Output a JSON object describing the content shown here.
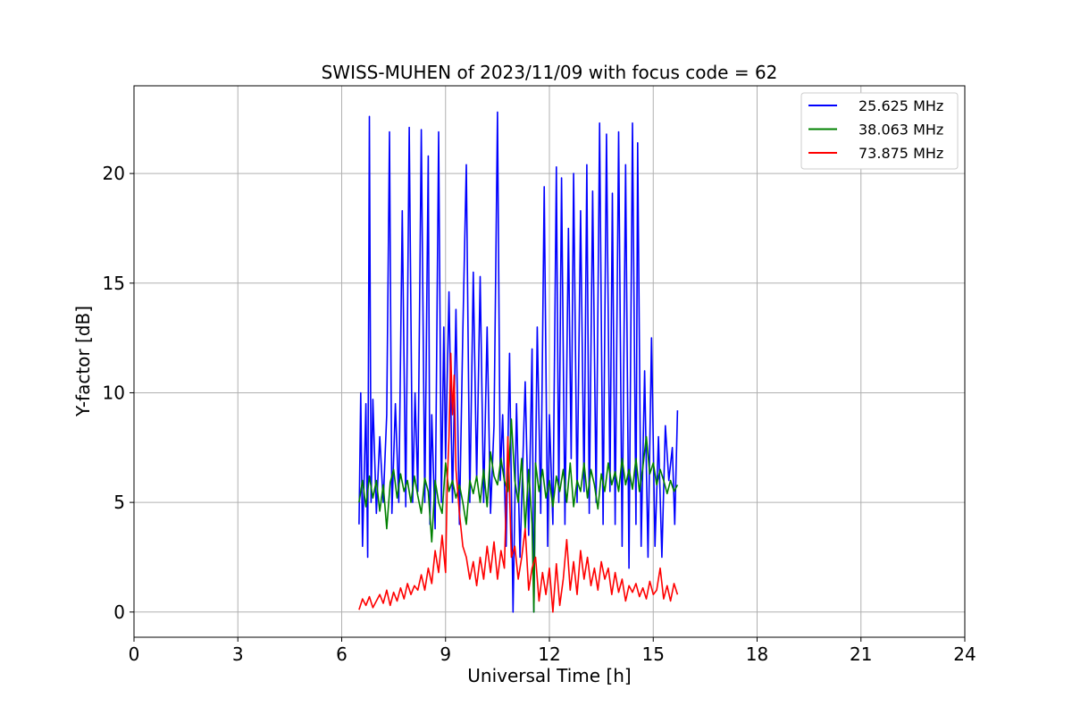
{
  "chart_data": {
    "type": "line",
    "title": "SWISS-MUHEN of 2023/11/09 with focus code = 62",
    "xlabel": "Universal Time [h]",
    "ylabel": "Y-factor [dB]",
    "xlim": [
      0,
      24
    ],
    "ylim": [
      -1.15,
      24
    ],
    "xticks": [
      0,
      3,
      6,
      9,
      12,
      15,
      18,
      21,
      24
    ],
    "yticks": [
      0,
      5,
      10,
      15,
      20
    ],
    "grid": true,
    "legend_position": "top-right",
    "series": [
      {
        "name": "25.625 MHz",
        "color": "#0000ff",
        "x": [
          6.5,
          6.55,
          6.6,
          6.7,
          6.75,
          6.8,
          6.85,
          6.9,
          7.0,
          7.1,
          7.2,
          7.3,
          7.38,
          7.45,
          7.55,
          7.65,
          7.75,
          7.85,
          7.95,
          8.05,
          8.12,
          8.2,
          8.3,
          8.4,
          8.5,
          8.55,
          8.6,
          8.7,
          8.8,
          8.88,
          8.95,
          9.0,
          9.1,
          9.2,
          9.3,
          9.4,
          9.5,
          9.6,
          9.7,
          9.8,
          9.9,
          10.0,
          10.1,
          10.2,
          10.3,
          10.4,
          10.5,
          10.58,
          10.65,
          10.75,
          10.85,
          10.95,
          11.05,
          11.15,
          11.3,
          11.4,
          11.5,
          11.55,
          11.65,
          11.75,
          11.85,
          11.95,
          12.0,
          12.1,
          12.2,
          12.27,
          12.35,
          12.45,
          12.55,
          12.63,
          12.7,
          12.8,
          12.9,
          13.0,
          13.08,
          13.15,
          13.25,
          13.35,
          13.45,
          13.55,
          13.65,
          13.75,
          13.82,
          13.9,
          14.0,
          14.1,
          14.2,
          14.3,
          14.4,
          14.5,
          14.55,
          14.65,
          14.75,
          14.85,
          14.95,
          15.05,
          15.15,
          15.25,
          15.35,
          15.45,
          15.55,
          15.62,
          15.7
        ],
        "values": [
          4.0,
          10.0,
          3.0,
          9.5,
          2.5,
          22.6,
          5.0,
          9.7,
          4.5,
          8.0,
          5.0,
          9.0,
          21.9,
          4.5,
          9.5,
          5.0,
          18.3,
          4.8,
          22.1,
          5.0,
          10.0,
          5.5,
          22.0,
          5.0,
          20.8,
          4.0,
          9.0,
          3.8,
          21.9,
          5.0,
          13.0,
          7.0,
          14.6,
          5.0,
          13.8,
          4.0,
          12.8,
          20.4,
          5.0,
          15.5,
          6.0,
          15.3,
          5.0,
          13.0,
          4.5,
          8.5,
          22.8,
          6.0,
          9.0,
          3.0,
          11.8,
          0.0,
          9.5,
          2.5,
          10.5,
          3.5,
          12.0,
          0.0,
          13.0,
          4.5,
          19.4,
          3.0,
          9.0,
          4.0,
          20.3,
          5.0,
          19.8,
          4.0,
          17.5,
          7.0,
          20.0,
          5.0,
          18.3,
          5.5,
          20.4,
          4.5,
          19.2,
          5.0,
          22.3,
          4.0,
          21.8,
          5.5,
          19.1,
          4.0,
          21.9,
          3.0,
          20.4,
          2.0,
          22.3,
          4.0,
          21.4,
          3.0,
          11.0,
          2.5,
          12.5,
          3.0,
          8.0,
          2.5,
          8.5,
          6.0,
          7.5,
          4.0,
          9.2
        ]
      },
      {
        "name": "38.063 MHz",
        "color": "#008000",
        "x": [
          6.5,
          6.6,
          6.7,
          6.8,
          6.9,
          7.0,
          7.1,
          7.2,
          7.3,
          7.4,
          7.5,
          7.6,
          7.7,
          7.8,
          7.9,
          8.0,
          8.1,
          8.2,
          8.3,
          8.4,
          8.5,
          8.6,
          8.7,
          8.8,
          8.9,
          9.0,
          9.1,
          9.2,
          9.3,
          9.4,
          9.5,
          9.6,
          9.7,
          9.8,
          9.9,
          10.0,
          10.1,
          10.2,
          10.3,
          10.4,
          10.5,
          10.6,
          10.7,
          10.8,
          10.9,
          11.0,
          11.1,
          11.2,
          11.3,
          11.4,
          11.5,
          11.55,
          11.6,
          11.7,
          11.8,
          11.9,
          12.0,
          12.1,
          12.2,
          12.3,
          12.4,
          12.5,
          12.6,
          12.7,
          12.8,
          12.9,
          13.0,
          13.1,
          13.2,
          13.3,
          13.4,
          13.5,
          13.6,
          13.7,
          13.8,
          13.9,
          14.0,
          14.1,
          14.2,
          14.3,
          14.4,
          14.5,
          14.6,
          14.7,
          14.8,
          14.9,
          15.0,
          15.1,
          15.2,
          15.3,
          15.4,
          15.5,
          15.6,
          15.7
        ],
        "values": [
          5.0,
          6.0,
          4.8,
          6.2,
          5.2,
          6.0,
          4.6,
          5.8,
          3.8,
          5.9,
          6.5,
          5.2,
          6.3,
          5.5,
          6.0,
          5.0,
          6.2,
          5.3,
          4.5,
          6.1,
          5.5,
          3.2,
          6.0,
          5.0,
          4.5,
          6.8,
          5.5,
          6.0,
          5.2,
          5.8,
          5.0,
          4.0,
          6.0,
          5.4,
          6.2,
          5.0,
          6.5,
          4.8,
          7.3,
          6.2,
          5.8,
          7.0,
          6.0,
          5.5,
          8.8,
          6.0,
          5.0,
          7.0,
          3.8,
          6.5,
          4.0,
          0.0,
          6.8,
          5.5,
          6.5,
          5.2,
          6.0,
          4.8,
          6.2,
          5.5,
          6.5,
          5.0,
          6.8,
          4.8,
          6.0,
          5.5,
          6.8,
          5.2,
          6.5,
          5.8,
          4.7,
          6.3,
          5.5,
          6.8,
          5.8,
          6.4,
          5.5,
          7.0,
          5.8,
          6.5,
          5.6,
          7.0,
          5.5,
          6.6,
          8.0,
          6.3,
          6.8,
          5.8,
          6.5,
          6.0,
          5.4,
          6.0,
          5.5,
          5.8
        ]
      },
      {
        "name": "73.875 MHz",
        "color": "#ff0000",
        "x": [
          6.5,
          6.6,
          6.7,
          6.8,
          6.9,
          7.0,
          7.1,
          7.2,
          7.3,
          7.4,
          7.5,
          7.6,
          7.7,
          7.8,
          7.9,
          8.0,
          8.1,
          8.2,
          8.3,
          8.4,
          8.5,
          8.6,
          8.7,
          8.8,
          8.9,
          9.0,
          9.05,
          9.1,
          9.15,
          9.2,
          9.25,
          9.3,
          9.4,
          9.5,
          9.6,
          9.7,
          9.8,
          9.9,
          10.0,
          10.1,
          10.2,
          10.3,
          10.4,
          10.5,
          10.6,
          10.7,
          10.75,
          10.8,
          10.85,
          10.9,
          11.0,
          11.1,
          11.2,
          11.3,
          11.4,
          11.5,
          11.6,
          11.7,
          11.8,
          11.9,
          12.0,
          12.1,
          12.2,
          12.3,
          12.4,
          12.5,
          12.6,
          12.7,
          12.8,
          12.9,
          13.0,
          13.1,
          13.2,
          13.3,
          13.4,
          13.5,
          13.6,
          13.7,
          13.8,
          13.9,
          14.0,
          14.1,
          14.2,
          14.3,
          14.4,
          14.5,
          14.6,
          14.7,
          14.8,
          14.9,
          15.0,
          15.1,
          15.2,
          15.3,
          15.4,
          15.5,
          15.6,
          15.7
        ],
        "values": [
          0.1,
          0.6,
          0.3,
          0.7,
          0.2,
          0.5,
          0.8,
          0.4,
          1.0,
          0.3,
          0.9,
          0.5,
          1.1,
          0.6,
          1.3,
          0.8,
          1.2,
          1.0,
          1.7,
          1.0,
          2.0,
          1.3,
          2.8,
          1.8,
          3.5,
          1.8,
          6.0,
          8.0,
          11.8,
          9.0,
          10.8,
          6.5,
          4.5,
          3.0,
          2.5,
          1.5,
          2.3,
          1.2,
          2.5,
          1.5,
          3.0,
          1.8,
          3.2,
          1.5,
          2.8,
          2.0,
          5.0,
          8.0,
          5.5,
          2.5,
          3.0,
          1.5,
          2.5,
          3.8,
          1.0,
          2.0,
          2.5,
          0.5,
          1.8,
          0.8,
          2.0,
          0.0,
          2.2,
          0.3,
          1.5,
          3.3,
          1.0,
          2.3,
          0.8,
          2.8,
          1.5,
          2.5,
          1.2,
          2.0,
          1.0,
          2.3,
          1.5,
          2.0,
          0.8,
          1.8,
          0.9,
          1.5,
          0.5,
          1.2,
          0.9,
          1.3,
          0.7,
          1.1,
          0.6,
          1.4,
          0.8,
          1.0,
          2.0,
          0.6,
          1.2,
          0.5,
          1.3,
          0.8
        ]
      }
    ]
  }
}
